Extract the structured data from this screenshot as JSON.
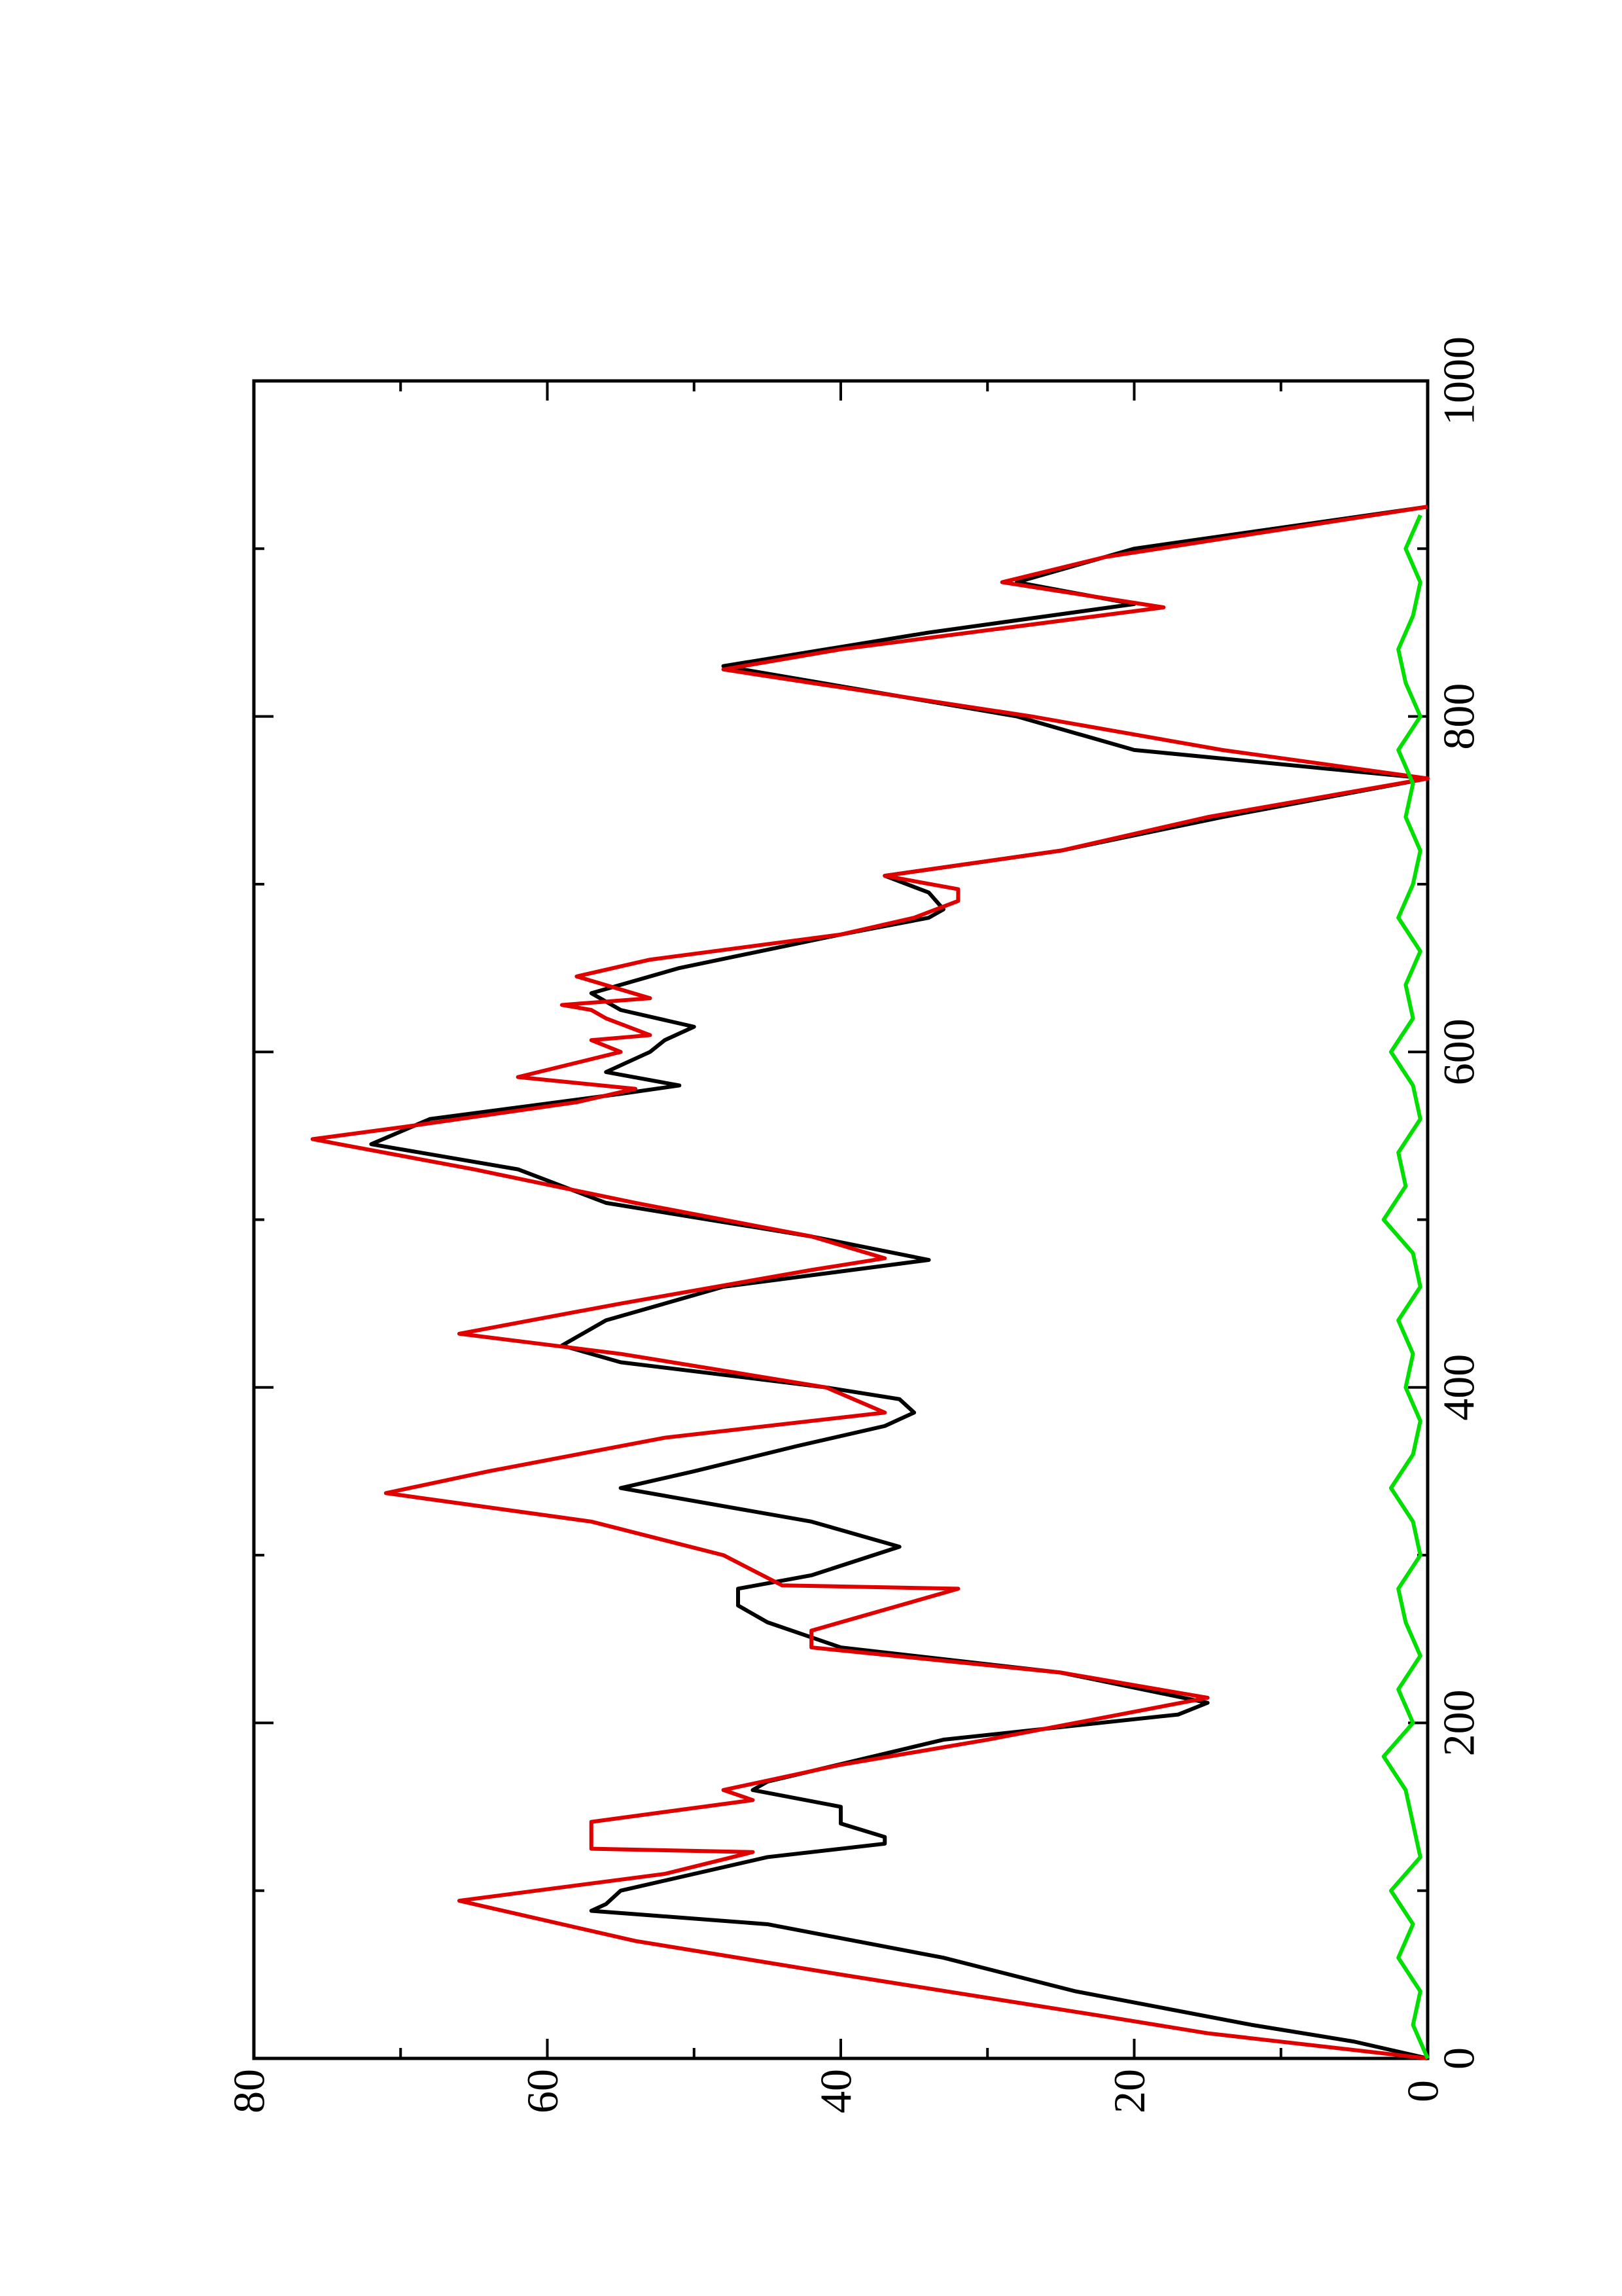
{
  "chart_data": {
    "type": "line",
    "xlim": [
      0,
      1000
    ],
    "xticks": [
      0,
      200,
      400,
      600,
      800,
      1000
    ],
    "xminorticks": [
      100,
      300,
      500,
      700,
      900
    ],
    "ylim": [
      0,
      80
    ],
    "yticks": [
      0,
      20,
      40,
      60,
      80
    ],
    "yminorticks": [
      10,
      30,
      50,
      70
    ],
    "series": [
      {
        "color": "#000000",
        "x": [
          0,
          10,
          20,
          30,
          40,
          60,
          80,
          88,
          92,
          100,
          120,
          128,
          132,
          140,
          150,
          160,
          165,
          190,
          205,
          212,
          230,
          245,
          260,
          270,
          280,
          288,
          305,
          320,
          340,
          350,
          365,
          377,
          385,
          393,
          400,
          415,
          425,
          440,
          460,
          476,
          490,
          510,
          530,
          545,
          560,
          575,
          580,
          588,
          600,
          607,
          615,
          625,
          635,
          650,
          670,
          680,
          685,
          695,
          705,
          720,
          740,
          763,
          780,
          800,
          830,
          850,
          867,
          880,
          900,
          925
        ],
        "values": [
          0,
          5,
          12,
          18,
          24,
          33,
          45,
          57,
          56,
          55,
          45,
          37,
          37,
          40,
          40,
          46,
          45,
          33,
          17,
          15,
          25,
          40,
          45,
          47,
          47,
          42,
          36,
          42,
          55,
          50,
          43,
          37,
          35,
          36,
          41,
          55,
          59,
          56,
          48,
          34,
          42,
          56,
          62,
          72,
          68,
          55,
          51,
          56,
          53,
          52,
          50,
          55,
          57,
          51,
          40,
          34,
          33,
          34,
          37,
          25,
          14,
          0,
          20,
          28,
          48,
          34,
          20,
          28,
          20,
          0
        ]
      },
      {
        "color": "#e00000",
        "x": [
          0,
          15,
          25,
          50,
          70,
          94,
          110,
          123,
          125,
          141,
          154,
          160,
          175,
          190,
          215,
          230,
          245,
          255,
          280,
          282,
          300,
          320,
          337,
          350,
          370,
          385,
          400,
          420,
          432,
          450,
          470,
          477,
          490,
          510,
          530,
          548,
          555,
          570,
          578,
          585,
          600,
          607,
          610,
          620,
          625,
          628,
          632,
          645,
          655,
          670,
          680,
          690,
          697,
          705,
          720,
          740,
          763,
          780,
          800,
          828,
          840,
          865,
          880,
          895,
          925
        ],
        "values": [
          0,
          15,
          22,
          40,
          54,
          66,
          52,
          46,
          57,
          57,
          46,
          48,
          40,
          30,
          15,
          25,
          42,
          42,
          32,
          44,
          48,
          57,
          71,
          64,
          52,
          37,
          41,
          55,
          66,
          55,
          42,
          37,
          42,
          54,
          65,
          76,
          70,
          58,
          54,
          62,
          55,
          57,
          53,
          56,
          57,
          59,
          53,
          58,
          53,
          40,
          35,
          32,
          32,
          37,
          25,
          15,
          0,
          14,
          27,
          48,
          40,
          18,
          29,
          22,
          0
        ]
      },
      {
        "color": "#00e000",
        "x": [
          0,
          20,
          40,
          60,
          80,
          100,
          120,
          140,
          160,
          180,
          200,
          220,
          240,
          260,
          280,
          300,
          320,
          340,
          360,
          380,
          400,
          420,
          440,
          460,
          480,
          500,
          520,
          540,
          560,
          580,
          600,
          620,
          640,
          660,
          680,
          700,
          720,
          740,
          760,
          780,
          800,
          820,
          840,
          860,
          880,
          900,
          920
        ],
        "values": [
          0,
          1,
          0.5,
          2,
          1,
          2.5,
          0.5,
          1,
          1.5,
          3,
          1,
          2,
          0.5,
          1.5,
          2,
          0.5,
          1,
          2.5,
          1,
          0.5,
          1.5,
          1,
          2,
          0.5,
          1,
          3,
          1.5,
          2,
          0.5,
          1,
          2.5,
          1,
          1.5,
          0.5,
          2,
          1,
          0.5,
          1.5,
          1,
          2,
          0.5,
          1.5,
          2,
          1,
          0.5,
          1.5,
          0.5
        ]
      }
    ]
  }
}
